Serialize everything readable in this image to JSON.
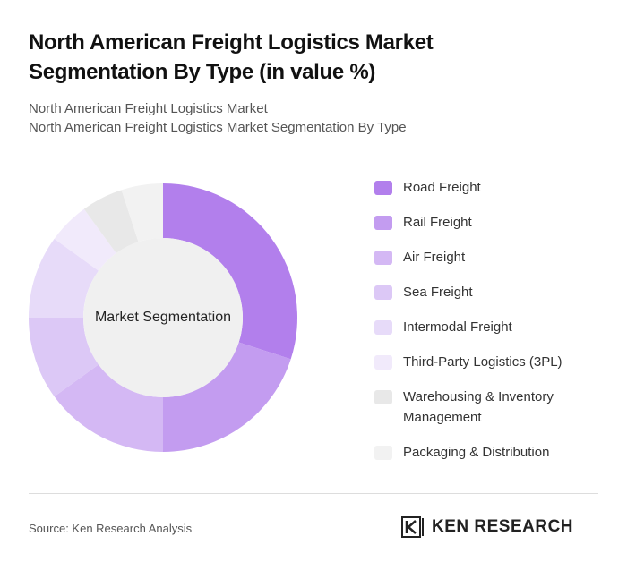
{
  "chart_data": {
    "type": "donut",
    "title": "North American Freight Logistics Market Segmentation By Type (in value %)",
    "subtitle": [
      "North American Freight Logistics Market",
      "North American Freight Logistics Market Segmentation By Type"
    ],
    "center_label": "Market Segmentation",
    "categories": [
      "Road Freight",
      "Rail Freight",
      "Air Freight",
      "Sea Freight",
      "Intermodal Freight",
      "Third-Party Logistics (3PL)",
      "Warehousing & Inventory Management",
      "Packaging & Distribution"
    ],
    "values": [
      30,
      20,
      15,
      10,
      10,
      5,
      5,
      5
    ],
    "colors": [
      "#b27fec",
      "#c39cf0",
      "#d4b8f4",
      "#dcc8f6",
      "#e7dbf9",
      "#f1eafb",
      "#e8e8e8",
      "#f2f2f2"
    ],
    "source": "Source: Ken Research Analysis",
    "logo": "KEN RESEARCH"
  }
}
